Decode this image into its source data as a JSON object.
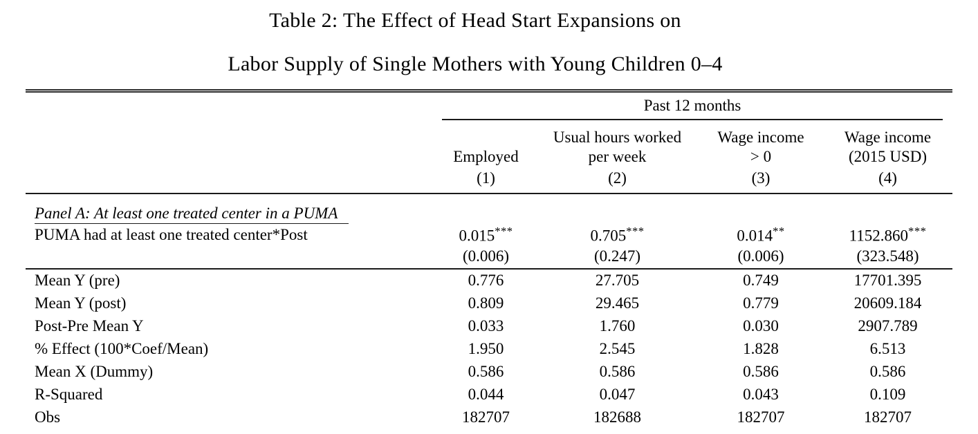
{
  "title": {
    "line1": "Table 2: The Effect of Head Start Expansions on",
    "line2": "Labor Supply of Single Mothers with Young Children 0–4"
  },
  "table": {
    "spanner": "Past 12 months",
    "columns": [
      {
        "lines": [
          "Employed"
        ],
        "number": "(1)"
      },
      {
        "lines": [
          "Usual hours worked",
          "per week"
        ],
        "number": "(2)"
      },
      {
        "lines": [
          "Wage income",
          "> 0"
        ],
        "number": "(3)"
      },
      {
        "lines": [
          "Wage income",
          "(2015 USD)"
        ],
        "number": "(4)"
      }
    ],
    "panel_heading": "Panel A: At least one treated center in a PUMA",
    "coefficient_row": {
      "label": "PUMA had at least one treated center*Post",
      "values": [
        {
          "value": "0.015",
          "stars": "***"
        },
        {
          "value": "0.705",
          "stars": "***"
        },
        {
          "value": "0.014",
          "stars": "**"
        },
        {
          "value": "1152.860",
          "stars": "***"
        }
      ],
      "std_errors": [
        "(0.006)",
        "(0.247)",
        "(0.006)",
        "(323.548)"
      ]
    },
    "stat_rows": [
      {
        "label": "Mean Y (pre)",
        "values": [
          "0.776",
          "27.705",
          "0.749",
          "17701.395"
        ]
      },
      {
        "label": "Mean Y (post)",
        "values": [
          "0.809",
          "29.465",
          "0.779",
          "20609.184"
        ]
      },
      {
        "label": "Post-Pre Mean Y",
        "values": [
          "0.033",
          "1.760",
          "0.030",
          "2907.789"
        ]
      },
      {
        "label": "% Effect (100*Coef/Mean)",
        "values": [
          "1.950",
          "2.545",
          "1.828",
          "6.513"
        ]
      },
      {
        "label": "Mean X (Dummy)",
        "values": [
          "0.586",
          "0.586",
          "0.586",
          "0.586"
        ]
      },
      {
        "label": "R-Squared",
        "values": [
          "0.044",
          "0.047",
          "0.043",
          "0.109"
        ]
      },
      {
        "label": "Obs",
        "values": [
          "182707",
          "182688",
          "182707",
          "182707"
        ]
      }
    ]
  }
}
